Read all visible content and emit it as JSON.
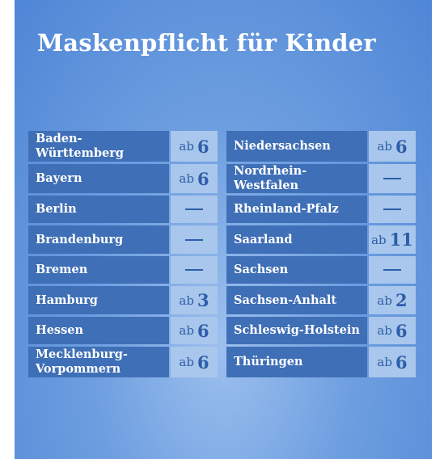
{
  "title": "Maskenpflicht für Kinder",
  "left": [
    {
      "name": "Baden-Württemberg",
      "prefix": "ab",
      "value": "6"
    },
    {
      "name": "Bayern",
      "prefix": "ab",
      "value": "6"
    },
    {
      "name": "Berlin",
      "prefix": "",
      "value": "—"
    },
    {
      "name": "Brandenburg",
      "prefix": "",
      "value": "—"
    },
    {
      "name": "Bremen",
      "prefix": "",
      "value": "—"
    },
    {
      "name": "Hamburg",
      "prefix": "ab",
      "value": "3"
    },
    {
      "name": "Hessen",
      "prefix": "ab",
      "value": "6"
    },
    {
      "name": "Mecklenburg-\nVorpommern",
      "prefix": "ab",
      "value": "6"
    }
  ],
  "right": [
    {
      "name": "Niedersachsen",
      "prefix": "ab",
      "value": "6"
    },
    {
      "name": "Nordrhein-Westfalen",
      "prefix": "",
      "value": "—"
    },
    {
      "name": "Rheinland-Pfalz",
      "prefix": "",
      "value": "—"
    },
    {
      "name": "Saarland",
      "prefix": "ab",
      "value": "11"
    },
    {
      "name": "Sachsen",
      "prefix": "",
      "value": "—"
    },
    {
      "name": "Sachsen-Anhalt",
      "prefix": "ab",
      "value": "2"
    },
    {
      "name": "Schleswig-Holstein",
      "prefix": "ab",
      "value": "6"
    },
    {
      "name": "Thüringen",
      "prefix": "ab",
      "value": "6"
    }
  ]
}
